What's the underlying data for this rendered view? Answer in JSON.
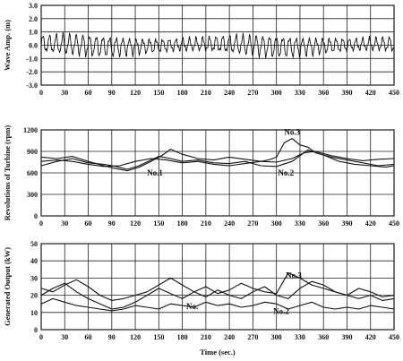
{
  "x_axis": {
    "label": "Time (sec.)",
    "min": 0,
    "max": 450,
    "ticks": [
      "0",
      "30",
      "60",
      "90",
      "120",
      "150",
      "180",
      "210",
      "240",
      "270",
      "300",
      "330",
      "360",
      "390",
      "420",
      "450"
    ]
  },
  "chart_data": [
    {
      "type": "line",
      "ylabel": "Wave Amp. (m)",
      "xlabel": "",
      "xlim": [
        0,
        450
      ],
      "ylim": [
        -3.0,
        3.0
      ],
      "yticks": [
        "3.0",
        "2.0",
        "1.0",
        "0.0",
        "-1.0",
        "-2.0",
        "-3.0"
      ],
      "grid": true,
      "wave": {
        "base_amplitude": 0.55,
        "peak_amplitude": 0.95,
        "period_sec": 8.5
      },
      "series": [
        {
          "x": [
            0,
            4,
            8,
            13,
            17,
            21,
            25,
            30,
            34,
            38,
            42,
            47,
            51,
            55,
            59,
            64,
            68,
            72,
            76,
            81,
            85,
            89,
            93,
            98,
            102,
            106,
            110,
            115,
            119,
            123,
            127,
            132,
            136,
            140,
            144,
            149,
            153,
            157,
            161,
            166,
            170,
            174,
            178,
            183,
            187,
            191,
            195,
            200,
            204,
            208,
            212,
            217,
            221,
            225,
            229,
            234,
            238,
            242,
            246,
            251,
            255,
            259,
            263,
            268,
            272,
            276,
            280,
            285,
            289,
            293,
            297,
            302,
            306,
            310,
            314,
            319,
            323,
            327,
            331,
            336,
            340,
            344,
            348,
            353,
            357,
            361,
            365,
            370,
            374,
            378,
            382,
            387,
            391,
            395,
            399,
            404,
            408,
            412,
            416,
            421,
            425,
            429,
            433,
            438,
            442,
            446,
            450
          ],
          "y": [
            0.1,
            0.7,
            -0.5,
            0.6,
            -0.3,
            0.4,
            -0.6,
            0.8,
            -0.4,
            0.5,
            -0.7,
            0.9,
            -0.5,
            0.6,
            -0.3,
            0.7,
            -0.8,
            0.5,
            -0.4,
            0.8,
            -0.6,
            0.4,
            -0.5,
            0.7,
            -0.3,
            0.6,
            -0.7,
            0.5,
            -0.4,
            0.9,
            -0.6,
            0.5,
            -0.3,
            0.7,
            -0.5,
            0.8,
            -0.6,
            0.4,
            -0.7,
            0.6,
            -0.4,
            0.8,
            -0.5,
            0.5,
            -0.6,
            0.7,
            -0.3,
            0.6,
            -0.5,
            0.8,
            -0.4,
            0.6,
            -0.7,
            0.5,
            -0.3,
            0.7,
            -0.6,
            0.9,
            -0.5,
            0.4,
            -0.6,
            0.7,
            -0.4,
            0.8,
            -0.5,
            0.6,
            -0.7,
            0.5,
            -0.4,
            0.9,
            -0.6,
            0.7,
            -0.5,
            0.6,
            -0.3,
            0.8,
            -0.6,
            0.5,
            -0.4,
            0.7,
            -0.7,
            0.6,
            -0.5,
            0.8,
            -0.3,
            0.5,
            -0.6,
            0.7,
            -0.4,
            0.6,
            -0.5,
            0.9,
            -0.6,
            0.5,
            -0.4,
            0.7,
            -0.5,
            0.6,
            -0.7,
            0.5,
            -0.3,
            0.8,
            -0.6,
            0.6,
            -0.4,
            0.5,
            -0.2
          ]
        }
      ]
    },
    {
      "type": "line",
      "ylabel": "Revolutions of Turbine (rpm)",
      "xlabel": "",
      "xlim": [
        0,
        450
      ],
      "ylim": [
        0,
        1200
      ],
      "yticks": [
        "1200",
        "900",
        "600",
        "300",
        "0"
      ],
      "grid": true,
      "series": [
        {
          "name": "No.1",
          "x": [
            0,
            20,
            40,
            60,
            80,
            95,
            110,
            125,
            140,
            155,
            165,
            180,
            200,
            220,
            240,
            260,
            280,
            300,
            320,
            335,
            350,
            370,
            390,
            410,
            430,
            450
          ],
          "y": [
            820,
            800,
            830,
            760,
            700,
            660,
            630,
            680,
            760,
            850,
            930,
            860,
            800,
            780,
            820,
            790,
            760,
            750,
            800,
            880,
            900,
            840,
            800,
            770,
            790,
            800
          ]
        },
        {
          "name": "No.2",
          "x": [
            0,
            20,
            40,
            60,
            80,
            95,
            110,
            125,
            140,
            150,
            165,
            180,
            200,
            220,
            240,
            260,
            280,
            300,
            320,
            340,
            360,
            380,
            400,
            420,
            440,
            450
          ],
          "y": [
            700,
            760,
            800,
            740,
            720,
            690,
            650,
            700,
            780,
            830,
            800,
            760,
            780,
            740,
            730,
            760,
            700,
            690,
            760,
            920,
            850,
            760,
            720,
            700,
            680,
            700
          ]
        },
        {
          "name": "No.3",
          "x": [
            0,
            20,
            40,
            60,
            80,
            100,
            120,
            140,
            160,
            180,
            200,
            220,
            240,
            260,
            280,
            290,
            300,
            310,
            320,
            330,
            340,
            350,
            370,
            390,
            410,
            430,
            450
          ],
          "y": [
            760,
            780,
            760,
            720,
            690,
            700,
            760,
            800,
            780,
            740,
            760,
            720,
            700,
            730,
            760,
            780,
            820,
            1020,
            1080,
            990,
            960,
            880,
            820,
            780,
            740,
            700,
            720
          ]
        }
      ],
      "annotations": [
        "No.1",
        "No.2",
        "No.3"
      ]
    },
    {
      "type": "line",
      "ylabel": "Generated Output (kW)",
      "xlabel": "Time (sec.)",
      "xlim": [
        0,
        450
      ],
      "ylim": [
        0,
        50
      ],
      "yticks": [
        "50",
        "40",
        "30",
        "20",
        "10",
        "0"
      ],
      "grid": true,
      "series": [
        {
          "name": "No.1",
          "x": [
            0,
            15,
            30,
            45,
            60,
            75,
            90,
            105,
            120,
            135,
            150,
            165,
            180,
            195,
            210,
            225,
            240,
            255,
            270,
            285,
            300,
            315,
            330,
            345,
            360,
            375,
            390,
            405,
            420,
            435,
            450
          ],
          "y": [
            20,
            24,
            27,
            22,
            18,
            15,
            12,
            13,
            16,
            20,
            24,
            21,
            18,
            22,
            19,
            23,
            20,
            18,
            22,
            25,
            20,
            18,
            24,
            28,
            26,
            22,
            20,
            18,
            20,
            17,
            18
          ]
        },
        {
          "name": "No.2",
          "x": [
            0,
            15,
            30,
            45,
            60,
            75,
            90,
            105,
            120,
            135,
            150,
            165,
            180,
            195,
            210,
            225,
            240,
            255,
            270,
            285,
            300,
            315,
            330,
            345,
            360,
            375,
            390,
            405,
            420,
            435,
            450
          ],
          "y": [
            15,
            18,
            16,
            14,
            13,
            12,
            11,
            12,
            14,
            13,
            12,
            15,
            14,
            13,
            16,
            14,
            15,
            13,
            14,
            16,
            15,
            12,
            14,
            16,
            13,
            12,
            13,
            12,
            14,
            13,
            12
          ]
        },
        {
          "name": "No.3",
          "x": [
            0,
            15,
            30,
            45,
            60,
            75,
            90,
            105,
            120,
            135,
            150,
            165,
            180,
            195,
            210,
            225,
            240,
            255,
            270,
            285,
            300,
            315,
            330,
            345,
            360,
            375,
            390,
            405,
            420,
            435,
            450
          ],
          "y": [
            24,
            22,
            26,
            29,
            25,
            20,
            17,
            18,
            20,
            22,
            26,
            30,
            26,
            22,
            25,
            21,
            23,
            27,
            24,
            22,
            21,
            33,
            30,
            26,
            24,
            22,
            20,
            24,
            22,
            19,
            20
          ]
        }
      ],
      "annotations": [
        "No.3",
        "No.",
        "No.2"
      ]
    }
  ]
}
